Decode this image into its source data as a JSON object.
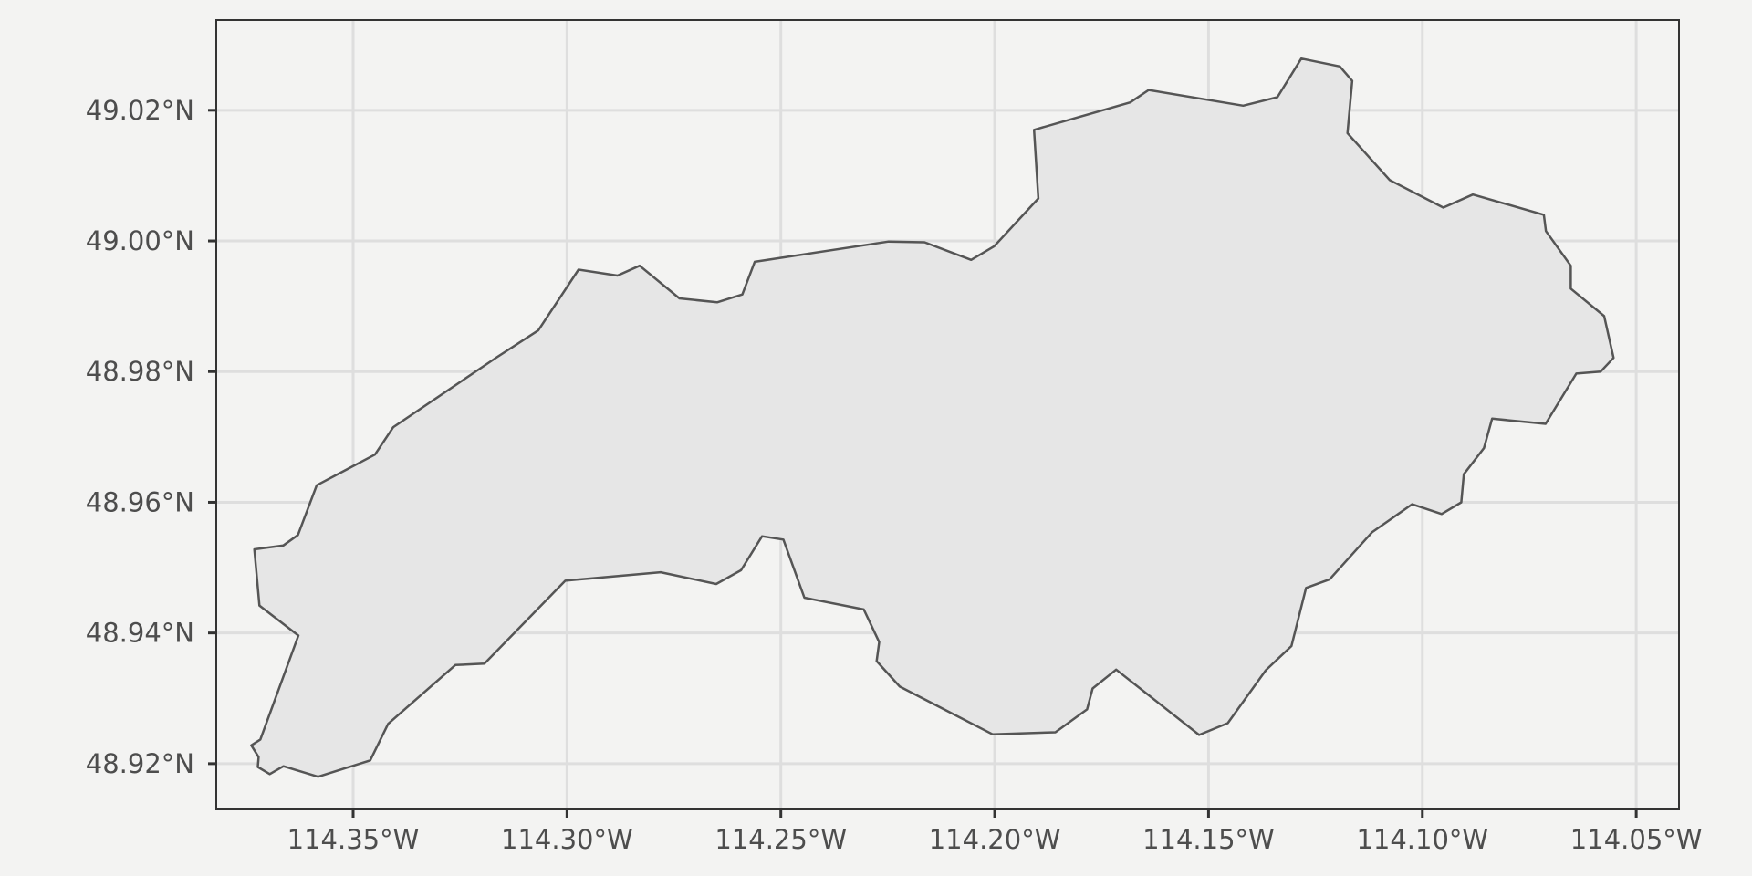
{
  "map": {
    "panel_background": "#f3f3f2",
    "grid_color": "#dedede",
    "polygon_fill": "#e6e6e6",
    "polygon_stroke": "#555555",
    "frame_color": "#333333",
    "x_ticks": [
      {
        "lon": -114.35,
        "label": "114.35°W"
      },
      {
        "lon": -114.3,
        "label": "114.30°W"
      },
      {
        "lon": -114.25,
        "label": "114.25°W"
      },
      {
        "lon": -114.2,
        "label": "114.20°W"
      },
      {
        "lon": -114.15,
        "label": "114.15°W"
      },
      {
        "lon": -114.1,
        "label": "114.10°W"
      },
      {
        "lon": -114.05,
        "label": "114.05°W"
      }
    ],
    "y_ticks": [
      {
        "lat": 49.02,
        "label": "49.02°N"
      },
      {
        "lat": 49.0,
        "label": "49.00°N"
      },
      {
        "lat": 48.98,
        "label": "48.98°N"
      },
      {
        "lat": 48.96,
        "label": "48.96°N"
      },
      {
        "lat": 48.94,
        "label": "48.94°N"
      },
      {
        "lat": 48.92,
        "label": "48.92°N"
      }
    ],
    "xlim": [
      -114.382,
      -114.04
    ],
    "ylim": [
      48.913,
      49.0338
    ],
    "boundary": [
      [
        -114.3663,
        48.9534
      ],
      [
        -114.3629,
        48.955
      ],
      [
        -114.3585,
        48.9626
      ],
      [
        -114.3449,
        48.9673
      ],
      [
        -114.3406,
        48.9715
      ],
      [
        -114.3164,
        48.9822
      ],
      [
        -114.3067,
        48.9863
      ],
      [
        -114.2973,
        48.9956
      ],
      [
        -114.2882,
        48.9947
      ],
      [
        -114.283,
        48.9962
      ],
      [
        -114.2737,
        48.9912
      ],
      [
        -114.2649,
        48.9906
      ],
      [
        -114.259,
        48.9918
      ],
      [
        -114.2561,
        48.9968
      ],
      [
        -114.2248,
        48.9999
      ],
      [
        -114.2164,
        48.9998
      ],
      [
        -114.2055,
        48.9971
      ],
      [
        -114.2001,
        48.9992
      ],
      [
        -114.1898,
        49.0065
      ],
      [
        -114.1908,
        49.017
      ],
      [
        -114.1683,
        49.0212
      ],
      [
        -114.164,
        49.0231
      ],
      [
        -114.1419,
        49.0207
      ],
      [
        -114.1339,
        49.022
      ],
      [
        -114.1283,
        49.0279
      ],
      [
        -114.1193,
        49.0267
      ],
      [
        -114.1164,
        49.0245
      ],
      [
        -114.1175,
        49.0165
      ],
      [
        -114.1076,
        49.0093
      ],
      [
        -114.0951,
        49.0051
      ],
      [
        -114.0882,
        49.0071
      ],
      [
        -114.0716,
        49.004
      ],
      [
        -114.0711,
        49.0015
      ],
      [
        -114.0653,
        48.9962
      ],
      [
        -114.0653,
        48.9927
      ],
      [
        -114.0575,
        48.9885
      ],
      [
        -114.0553,
        48.9821
      ],
      [
        -114.0583,
        48.98
      ],
      [
        -114.064,
        48.9797
      ],
      [
        -114.0712,
        48.972
      ],
      [
        -114.0837,
        48.9728
      ],
      [
        -114.0856,
        48.9683
      ],
      [
        -114.0903,
        48.9643
      ],
      [
        -114.0909,
        48.96
      ],
      [
        -114.0955,
        48.9582
      ],
      [
        -114.1024,
        48.9597
      ],
      [
        -114.1118,
        48.9554
      ],
      [
        -114.1217,
        48.9482
      ],
      [
        -114.1272,
        48.9469
      ],
      [
        -114.1306,
        48.938
      ],
      [
        -114.1366,
        48.9343
      ],
      [
        -114.1455,
        48.9262
      ],
      [
        -114.1522,
        48.9244
      ],
      [
        -114.1716,
        48.9344
      ],
      [
        -114.1771,
        48.9315
      ],
      [
        -114.1784,
        48.9283
      ],
      [
        -114.1858,
        48.9248
      ],
      [
        -114.2005,
        48.9245
      ],
      [
        -114.2222,
        48.9318
      ],
      [
        -114.2276,
        48.9357
      ],
      [
        -114.227,
        48.9386
      ],
      [
        -114.2306,
        48.9436
      ],
      [
        -114.2445,
        48.9454
      ],
      [
        -114.2494,
        48.9543
      ],
      [
        -114.2544,
        48.9548
      ],
      [
        -114.2593,
        48.9496
      ],
      [
        -114.2651,
        48.9475
      ],
      [
        -114.2781,
        48.9493
      ],
      [
        -114.3004,
        48.948
      ],
      [
        -114.3193,
        48.9353
      ],
      [
        -114.3261,
        48.9351
      ],
      [
        -114.3418,
        48.9261
      ],
      [
        -114.346,
        48.9205
      ],
      [
        -114.3582,
        48.918
      ],
      [
        -114.3663,
        48.9196
      ],
      [
        -114.3695,
        48.9184
      ],
      [
        -114.3723,
        48.9195
      ],
      [
        -114.3721,
        48.921
      ],
      [
        -114.3738,
        48.9228
      ],
      [
        -114.3717,
        48.9237
      ],
      [
        -114.3628,
        48.9396
      ],
      [
        -114.3719,
        48.9442
      ],
      [
        -114.3731,
        48.9528
      ],
      [
        -114.3663,
        48.9534
      ]
    ]
  }
}
